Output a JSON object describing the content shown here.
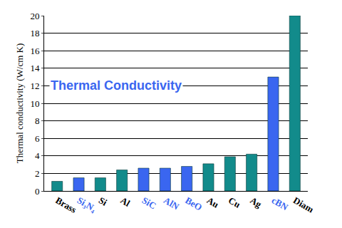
{
  "chart_data": {
    "type": "bar",
    "title": "Thermal Conductivity",
    "y_label": "Thermal conductivity (W/cm K)",
    "categories": [
      "Brass",
      "Si₃N₄",
      "Si",
      "Al",
      "SiC",
      "AlN",
      "BeO",
      "Au",
      "Cu",
      "Ag",
      "cBN",
      "Diam"
    ],
    "values": [
      1.1,
      1.5,
      1.5,
      2.4,
      2.6,
      2.6,
      2.8,
      3.1,
      3.9,
      4.2,
      13,
      20
    ],
    "color": "#128b8b",
    "colors": [
      "#128b8b",
      "#3a66f0",
      "#128b8b",
      "#128b8b",
      "#3a66f0",
      "#3a66f0",
      "#3a66f0",
      "#128b8b",
      "#128b8b",
      "#128b8b",
      "#3a66f0",
      "#128b8b"
    ],
    "ylim": [
      0,
      20
    ],
    "yticks": [
      0,
      2,
      4,
      6,
      8,
      10,
      12,
      14,
      16,
      18,
      20
    ],
    "grid": true
  }
}
